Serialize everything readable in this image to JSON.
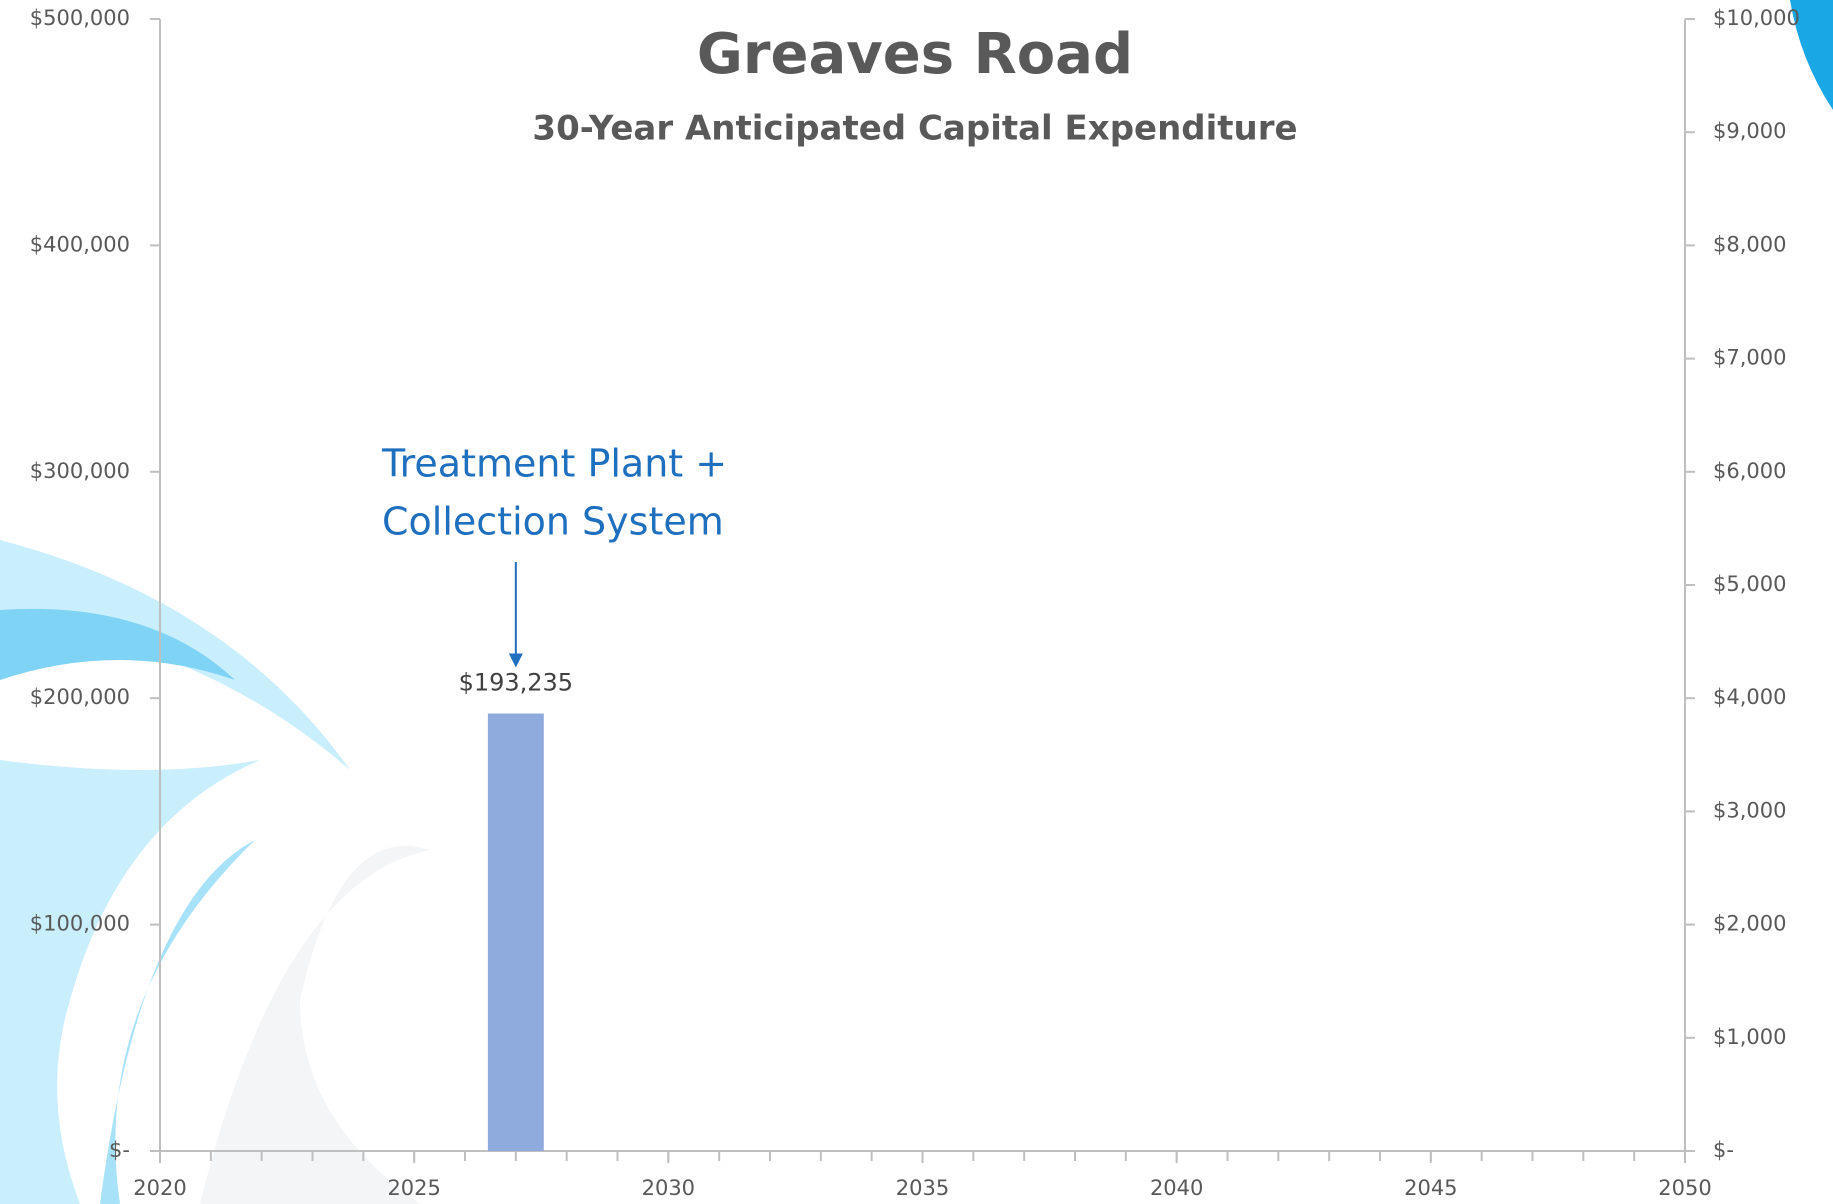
{
  "chart_data": {
    "type": "bar",
    "title": "Greaves Road",
    "subtitle": "30-Year Anticipated Capital Expenditure",
    "annotation": [
      "Treatment Plant +",
      "Collection System"
    ],
    "x": [
      2027
    ],
    "values": [
      193235
    ],
    "value_labels": [
      "$193,235"
    ],
    "color": "#8faadc",
    "xlim": [
      2020,
      2050
    ],
    "xticks": [
      2020,
      2025,
      2030,
      2035,
      2040,
      2045,
      2050
    ],
    "ylim": [
      0,
      500000
    ],
    "yticks": [
      {
        "value": 0,
        "label": "$-"
      },
      {
        "value": 100000,
        "label": "$100,000"
      },
      {
        "value": 200000,
        "label": "$200,000"
      },
      {
        "value": 300000,
        "label": "$300,000"
      },
      {
        "value": 400000,
        "label": "$400,000"
      },
      {
        "value": 500000,
        "label": "$500,000"
      }
    ],
    "y2lim": [
      0,
      10000
    ],
    "y2ticks": [
      {
        "value": 0,
        "label": "$-"
      },
      {
        "value": 1000,
        "label": "$1,000"
      },
      {
        "value": 2000,
        "label": "$2,000"
      },
      {
        "value": 3000,
        "label": "$3,000"
      },
      {
        "value": 4000,
        "label": "$4,000"
      },
      {
        "value": 5000,
        "label": "$5,000"
      },
      {
        "value": 6000,
        "label": "$6,000"
      },
      {
        "value": 7000,
        "label": "$7,000"
      },
      {
        "value": 8000,
        "label": "$8,000"
      },
      {
        "value": 9000,
        "label": "$9,000"
      },
      {
        "value": 10000,
        "label": "$10,000"
      }
    ]
  }
}
